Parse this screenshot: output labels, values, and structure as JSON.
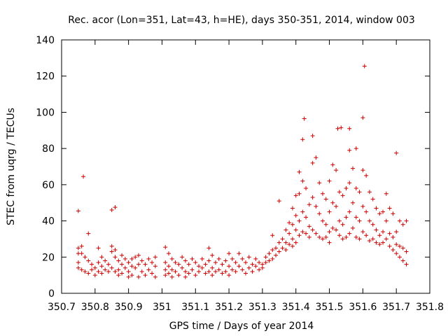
{
  "chart_data": {
    "type": "scatter",
    "title": "Rec. acor (Lon=351, Lat=43, h=HE), days 350-351, 2014, window 003",
    "xlabel": "GPS time / Days of year 2014",
    "ylabel": "STEC from uqrg / TECUs",
    "xlim": [
      350.7,
      351.8
    ],
    "ylim": [
      0,
      140
    ],
    "xticks": [
      "350.7",
      "350.8",
      "350.9",
      "351",
      "351.1",
      "351.2",
      "351.3",
      "351.4",
      "351.5",
      "351.6",
      "351.7",
      "351.8"
    ],
    "yticks": [
      "0",
      "20",
      "40",
      "60",
      "80",
      "100",
      "120",
      "140"
    ],
    "grid": false,
    "marker": "plus",
    "color": "#cc0000",
    "series": [
      {
        "name": "",
        "points": [
          [
            350.75,
            45.5
          ],
          [
            350.75,
            25
          ],
          [
            350.75,
            22
          ],
          [
            350.75,
            17
          ],
          [
            350.75,
            14
          ],
          [
            350.76,
            13
          ],
          [
            350.76,
            22
          ],
          [
            350.76,
            26
          ],
          [
            350.765,
            64.5
          ],
          [
            350.77,
            20
          ],
          [
            350.77,
            12
          ],
          [
            350.78,
            33
          ],
          [
            350.78,
            18
          ],
          [
            350.78,
            11
          ],
          [
            350.79,
            16
          ],
          [
            350.79,
            13
          ],
          [
            350.8,
            10
          ],
          [
            350.8,
            14
          ],
          [
            350.81,
            25
          ],
          [
            350.81,
            17
          ],
          [
            350.81,
            12
          ],
          [
            350.82,
            20
          ],
          [
            350.82,
            15
          ],
          [
            350.82,
            11
          ],
          [
            350.83,
            13
          ],
          [
            350.83,
            18
          ],
          [
            350.84,
            16
          ],
          [
            350.84,
            12
          ],
          [
            350.85,
            46
          ],
          [
            350.85,
            26
          ],
          [
            350.85,
            23
          ],
          [
            350.85,
            14
          ],
          [
            350.86,
            47.5
          ],
          [
            350.86,
            24
          ],
          [
            350.86,
            20
          ],
          [
            350.86,
            12
          ],
          [
            350.87,
            18
          ],
          [
            350.87,
            13
          ],
          [
            350.87,
            10
          ],
          [
            350.88,
            21
          ],
          [
            350.88,
            16
          ],
          [
            350.88,
            11
          ],
          [
            350.89,
            19
          ],
          [
            350.89,
            14
          ],
          [
            350.9,
            17
          ],
          [
            350.9,
            12
          ],
          [
            350.9,
            9
          ],
          [
            350.91,
            19
          ],
          [
            350.91,
            15
          ],
          [
            350.91,
            10
          ],
          [
            350.92,
            20
          ],
          [
            350.92,
            14
          ],
          [
            350.93,
            21
          ],
          [
            350.93,
            16
          ],
          [
            350.93,
            9
          ],
          [
            350.94,
            18
          ],
          [
            350.94,
            12
          ],
          [
            350.95,
            16
          ],
          [
            350.95,
            10
          ],
          [
            350.96,
            19
          ],
          [
            350.96,
            13
          ],
          [
            350.97,
            17
          ],
          [
            350.97,
            11
          ],
          [
            350.98,
            20
          ],
          [
            350.98,
            15
          ],
          [
            350.98,
            9
          ],
          [
            351.01,
            25.5
          ],
          [
            351.01,
            17
          ],
          [
            351.01,
            13
          ],
          [
            351.01,
            10
          ],
          [
            351.02,
            22
          ],
          [
            351.02,
            15
          ],
          [
            351.02,
            11
          ],
          [
            351.03,
            19
          ],
          [
            351.03,
            13
          ],
          [
            351.03,
            9
          ],
          [
            351.04,
            17
          ],
          [
            351.04,
            12
          ],
          [
            351.05,
            16
          ],
          [
            351.05,
            10
          ],
          [
            351.06,
            20
          ],
          [
            351.06,
            14
          ],
          [
            351.07,
            18
          ],
          [
            351.07,
            12
          ],
          [
            351.07,
            9
          ],
          [
            351.08,
            16
          ],
          [
            351.08,
            11
          ],
          [
            351.09,
            19
          ],
          [
            351.09,
            13
          ],
          [
            351.1,
            17
          ],
          [
            351.1,
            10
          ],
          [
            351.11,
            15
          ],
          [
            351.11,
            12
          ],
          [
            351.12,
            19
          ],
          [
            351.12,
            14
          ],
          [
            351.13,
            16
          ],
          [
            351.13,
            11
          ],
          [
            351.14,
            25
          ],
          [
            351.14,
            18
          ],
          [
            351.14,
            12
          ],
          [
            351.15,
            21
          ],
          [
            351.15,
            14
          ],
          [
            351.15,
            10
          ],
          [
            351.16,
            17
          ],
          [
            351.16,
            12
          ],
          [
            351.17,
            19
          ],
          [
            351.17,
            13
          ],
          [
            351.18,
            16
          ],
          [
            351.18,
            11
          ],
          [
            351.19,
            18
          ],
          [
            351.19,
            12
          ],
          [
            351.2,
            22
          ],
          [
            351.2,
            15
          ],
          [
            351.2,
            10
          ],
          [
            351.21,
            19
          ],
          [
            351.21,
            13
          ],
          [
            351.22,
            17
          ],
          [
            351.22,
            12
          ],
          [
            351.23,
            22
          ],
          [
            351.23,
            15
          ],
          [
            351.24,
            19
          ],
          [
            351.24,
            13
          ],
          [
            351.25,
            17
          ],
          [
            351.25,
            11
          ],
          [
            351.26,
            20
          ],
          [
            351.26,
            14
          ],
          [
            351.27,
            16
          ],
          [
            351.27,
            12
          ],
          [
            351.28,
            19
          ],
          [
            351.28,
            15
          ],
          [
            351.29,
            17
          ],
          [
            351.29,
            13
          ],
          [
            351.3,
            16
          ],
          [
            351.3,
            14
          ],
          [
            351.31,
            20
          ],
          [
            351.31,
            17
          ],
          [
            351.32,
            22
          ],
          [
            351.32,
            18
          ],
          [
            351.33,
            32
          ],
          [
            351.33,
            24
          ],
          [
            351.33,
            19
          ],
          [
            351.34,
            25
          ],
          [
            351.34,
            21
          ],
          [
            351.35,
            51
          ],
          [
            351.35,
            28
          ],
          [
            351.35,
            23
          ],
          [
            351.36,
            30
          ],
          [
            351.36,
            25
          ],
          [
            351.37,
            35
          ],
          [
            351.37,
            28
          ],
          [
            351.37,
            24
          ],
          [
            351.38,
            39
          ],
          [
            351.38,
            33
          ],
          [
            351.38,
            27
          ],
          [
            351.39,
            47
          ],
          [
            351.39,
            38
          ],
          [
            351.39,
            30
          ],
          [
            351.39,
            26
          ],
          [
            351.4,
            54
          ],
          [
            351.4,
            43
          ],
          [
            351.4,
            35
          ],
          [
            351.4,
            28
          ],
          [
            351.41,
            67
          ],
          [
            351.41,
            55
          ],
          [
            351.41,
            40
          ],
          [
            351.41,
            32
          ],
          [
            351.42,
            85
          ],
          [
            351.42,
            62
          ],
          [
            351.42,
            45
          ],
          [
            351.42,
            34
          ],
          [
            351.425,
            96.5
          ],
          [
            351.43,
            58
          ],
          [
            351.43,
            42
          ],
          [
            351.43,
            33
          ],
          [
            351.44,
            49
          ],
          [
            351.44,
            37
          ],
          [
            351.44,
            31
          ],
          [
            351.45,
            87
          ],
          [
            351.45,
            72
          ],
          [
            351.45,
            53
          ],
          [
            351.45,
            35
          ],
          [
            351.46,
            75
          ],
          [
            351.46,
            48
          ],
          [
            351.46,
            33
          ],
          [
            351.47,
            61
          ],
          [
            351.47,
            44
          ],
          [
            351.47,
            31
          ],
          [
            351.48,
            55
          ],
          [
            351.48,
            40
          ],
          [
            351.48,
            30
          ],
          [
            351.49,
            52
          ],
          [
            351.49,
            38
          ],
          [
            351.49,
            31
          ],
          [
            351.5,
            62
          ],
          [
            351.5,
            45
          ],
          [
            351.5,
            34
          ],
          [
            351.5,
            28
          ],
          [
            351.51,
            71
          ],
          [
            351.51,
            50
          ],
          [
            351.51,
            36
          ],
          [
            351.52,
            68
          ],
          [
            351.52,
            48
          ],
          [
            351.52,
            35
          ],
          [
            351.525,
            91
          ],
          [
            351.53,
            56
          ],
          [
            351.53,
            40
          ],
          [
            351.53,
            32
          ],
          [
            351.535,
            91.5
          ],
          [
            351.54,
            54
          ],
          [
            351.54,
            38
          ],
          [
            351.54,
            30
          ],
          [
            351.55,
            58
          ],
          [
            351.55,
            42
          ],
          [
            351.55,
            31
          ],
          [
            351.56,
            91
          ],
          [
            351.56,
            79
          ],
          [
            351.56,
            61
          ],
          [
            351.56,
            45
          ],
          [
            351.56,
            33
          ],
          [
            351.57,
            69
          ],
          [
            351.57,
            50
          ],
          [
            351.57,
            36
          ],
          [
            351.58,
            80
          ],
          [
            351.58,
            58
          ],
          [
            351.58,
            42
          ],
          [
            351.58,
            31
          ],
          [
            351.59,
            56
          ],
          [
            351.59,
            40
          ],
          [
            351.59,
            30
          ],
          [
            351.6,
            97
          ],
          [
            351.6,
            68
          ],
          [
            351.6,
            48
          ],
          [
            351.6,
            34
          ],
          [
            351.605,
            125.5
          ],
          [
            351.61,
            65
          ],
          [
            351.61,
            45
          ],
          [
            351.61,
            32
          ],
          [
            351.62,
            56
          ],
          [
            351.62,
            40
          ],
          [
            351.62,
            29
          ],
          [
            351.63,
            52
          ],
          [
            351.63,
            38
          ],
          [
            351.63,
            30
          ],
          [
            351.64,
            47
          ],
          [
            351.64,
            35
          ],
          [
            351.64,
            28
          ],
          [
            351.65,
            44
          ],
          [
            351.65,
            32
          ],
          [
            351.65,
            27
          ],
          [
            351.66,
            45
          ],
          [
            351.66,
            34
          ],
          [
            351.66,
            28
          ],
          [
            351.67,
            55
          ],
          [
            351.67,
            40
          ],
          [
            351.67,
            30
          ],
          [
            351.68,
            47
          ],
          [
            351.68,
            33
          ],
          [
            351.68,
            26
          ],
          [
            351.69,
            44
          ],
          [
            351.69,
            31
          ],
          [
            351.69,
            24
          ],
          [
            351.7,
            77.5
          ],
          [
            351.7,
            34
          ],
          [
            351.7,
            27
          ],
          [
            351.7,
            22
          ],
          [
            351.71,
            40
          ],
          [
            351.71,
            26
          ],
          [
            351.71,
            20
          ],
          [
            351.72,
            38
          ],
          [
            351.72,
            25
          ],
          [
            351.72,
            18
          ],
          [
            351.73,
            40
          ],
          [
            351.73,
            23
          ],
          [
            351.73,
            16
          ]
        ]
      }
    ]
  }
}
